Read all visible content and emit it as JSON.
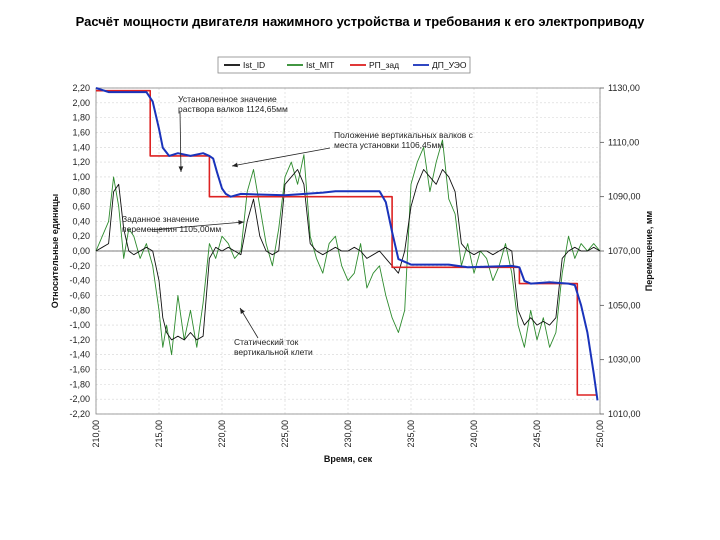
{
  "slide": {
    "title": "Расчёт мощности двигателя нажимного устройства и требования к его электроприводу"
  },
  "chart_data": {
    "type": "line",
    "xlabel": "Время, сек",
    "ylabel_left": "Относительные единицы",
    "ylabel_right": "Перемещение, мм",
    "x_ticks": [
      "210,00",
      "215,00",
      "220,00",
      "225,00",
      "230,00",
      "235,00",
      "240,00",
      "245,00",
      "250,00"
    ],
    "xlim": [
      210,
      250
    ],
    "y_left_ticks": [
      "2,20",
      "2,00",
      "1,80",
      "1,60",
      "1,40",
      "1,20",
      "1,00",
      "0,80",
      "0,60",
      "0,40",
      "0,20",
      "0,00",
      "-0,20",
      "-0,40",
      "-0,60",
      "-0,80",
      "-1,00",
      "-1,20",
      "-1,40",
      "-1,60",
      "-1,80",
      "-2,00",
      "-2,20"
    ],
    "ylim_left": [
      -2.2,
      2.2
    ],
    "y_right_ticks": [
      "1130,00",
      "1110,00",
      "1090,00",
      "1070,00",
      "1050,00",
      "1030,00",
      "1010,00"
    ],
    "ylim_right": [
      1010,
      1130
    ],
    "grid": true,
    "legend_position": "top",
    "legend": [
      {
        "name": "Ist_ID",
        "color": "#111111"
      },
      {
        "name": "Ist_MIT",
        "color": "#2e8b2e"
      },
      {
        "name": "PП_зад",
        "color": "#dd2222"
      },
      {
        "name": "ДП_УЭО",
        "color": "#1a33bb"
      }
    ],
    "series": [
      {
        "name": "PП_зад",
        "axis": "right",
        "x": [
          210.0,
          214.3,
          214.3,
          219.0,
          219.0,
          233.5,
          233.5,
          243.6,
          243.6,
          248.2,
          248.2,
          249.8
        ],
        "y": [
          1129.0,
          1129.0,
          1105.0,
          1105.0,
          1090.0,
          1090.0,
          1064.0,
          1064.0,
          1058.0,
          1058.0,
          1017.0,
          1017.0
        ]
      },
      {
        "name": "ДП_УЭО",
        "axis": "right",
        "x": [
          210.0,
          211.0,
          214.0,
          214.5,
          215.0,
          215.3,
          215.8,
          216.5,
          217.5,
          218.5,
          219.0,
          219.3,
          219.6,
          220.0,
          220.3,
          220.7,
          221.5,
          225.0,
          228.0,
          229.0,
          232.5,
          233.0,
          233.5,
          234.0,
          235.0,
          238.0,
          239.5,
          243.0,
          243.6,
          244.0,
          244.5,
          246.0,
          247.5,
          248.0,
          248.5,
          249.0,
          249.5,
          249.8
        ],
        "y": [
          1130.0,
          1128.5,
          1128.5,
          1125.0,
          1115.0,
          1108.0,
          1105.0,
          1106.0,
          1105.0,
          1106.0,
          1105.0,
          1104.0,
          1099.0,
          1093.0,
          1091.0,
          1090.0,
          1091.0,
          1090.5,
          1091.5,
          1092.0,
          1092.0,
          1088.0,
          1077.0,
          1067.0,
          1065.0,
          1065.0,
          1064.0,
          1064.5,
          1064.0,
          1059.0,
          1058.0,
          1058.5,
          1058.0,
          1057.5,
          1050.0,
          1040.0,
          1025.0,
          1015.0
        ]
      },
      {
        "name": "Ist_ID",
        "axis": "left",
        "x": [
          210.0,
          210.5,
          211.0,
          211.4,
          211.8,
          212.2,
          212.6,
          213.0,
          213.5,
          214.0,
          214.5,
          215.0,
          215.3,
          215.6,
          216.0,
          216.5,
          217.0,
          217.5,
          218.0,
          218.5,
          219.0,
          219.5,
          220.0,
          220.5,
          221.0,
          221.5,
          222.0,
          222.5,
          223.0,
          223.5,
          224.0,
          224.5,
          225.0,
          225.5,
          226.0,
          226.5,
          227.0,
          227.5,
          228.0,
          228.5,
          229.0,
          229.5,
          230.0,
          230.5,
          231.0,
          231.5,
          232.0,
          232.5,
          233.0,
          233.5,
          234.0,
          234.5,
          235.0,
          235.5,
          236.0,
          236.5,
          237.0,
          237.5,
          238.0,
          238.5,
          239.0,
          239.5,
          240.0,
          240.5,
          241.0,
          241.5,
          242.0,
          242.5,
          243.0,
          243.5,
          244.0,
          244.5,
          245.0,
          245.5,
          246.0,
          246.5,
          247.0,
          247.5,
          248.0,
          248.5,
          249.0,
          249.5,
          250.0
        ],
        "y": [
          0.0,
          0.05,
          0.1,
          0.8,
          0.9,
          0.3,
          0.0,
          -0.05,
          0.0,
          0.05,
          0.0,
          -0.4,
          -0.9,
          -1.1,
          -1.2,
          -1.15,
          -1.2,
          -1.1,
          -1.2,
          -1.15,
          -0.1,
          0.05,
          0.0,
          0.05,
          0.0,
          -0.05,
          0.4,
          0.7,
          0.2,
          0.0,
          -0.05,
          0.0,
          0.9,
          1.0,
          1.1,
          0.9,
          0.1,
          0.0,
          -0.05,
          0.0,
          0.05,
          0.0,
          0.0,
          0.05,
          0.0,
          -0.1,
          -0.05,
          0.0,
          -0.1,
          -0.2,
          -0.3,
          0.0,
          0.6,
          0.9,
          1.1,
          1.0,
          0.9,
          1.1,
          1.0,
          0.8,
          0.1,
          0.0,
          -0.05,
          0.0,
          0.0,
          -0.05,
          0.0,
          0.05,
          0.0,
          -0.8,
          -1.0,
          -0.9,
          -1.0,
          -0.95,
          -1.0,
          -0.9,
          -0.1,
          0.0,
          0.05,
          0.0,
          0.0,
          0.05,
          0.0
        ]
      },
      {
        "name": "Ist_MIT",
        "axis": "left",
        "x": [
          210.0,
          210.5,
          211.0,
          211.4,
          211.8,
          212.2,
          212.6,
          213.0,
          213.5,
          214.0,
          214.5,
          215.0,
          215.3,
          215.6,
          216.0,
          216.5,
          217.0,
          217.5,
          218.0,
          218.5,
          219.0,
          219.5,
          220.0,
          220.5,
          221.0,
          221.5,
          222.0,
          222.5,
          223.0,
          223.5,
          224.0,
          224.5,
          225.0,
          225.5,
          226.0,
          226.5,
          227.0,
          227.5,
          228.0,
          228.5,
          229.0,
          229.5,
          230.0,
          230.5,
          231.0,
          231.5,
          232.0,
          232.5,
          233.0,
          233.5,
          234.0,
          234.5,
          235.0,
          235.5,
          236.0,
          236.5,
          237.0,
          237.5,
          238.0,
          238.5,
          239.0,
          239.5,
          240.0,
          240.5,
          241.0,
          241.5,
          242.0,
          242.5,
          243.0,
          243.5,
          244.0,
          244.5,
          245.0,
          245.5,
          246.0,
          246.5,
          247.0,
          247.5,
          248.0,
          248.5,
          249.0,
          249.5,
          250.0
        ],
        "y": [
          0.0,
          0.2,
          0.4,
          1.0,
          0.6,
          -0.1,
          0.3,
          0.2,
          -0.1,
          0.1,
          -0.2,
          -0.8,
          -1.3,
          -1.0,
          -1.4,
          -0.6,
          -1.2,
          -0.8,
          -1.3,
          -0.7,
          0.1,
          -0.1,
          0.2,
          0.1,
          -0.1,
          0.0,
          0.8,
          1.1,
          0.6,
          0.1,
          -0.2,
          0.3,
          1.0,
          1.2,
          0.9,
          1.3,
          0.2,
          -0.1,
          -0.3,
          0.1,
          0.2,
          -0.2,
          -0.4,
          -0.3,
          0.1,
          -0.5,
          -0.3,
          -0.2,
          -0.6,
          -0.9,
          -1.1,
          -0.8,
          0.9,
          1.2,
          1.4,
          0.8,
          1.2,
          1.5,
          0.7,
          0.5,
          -0.2,
          0.1,
          -0.3,
          0.0,
          -0.1,
          -0.4,
          -0.2,
          0.1,
          -0.3,
          -1.0,
          -1.3,
          -0.8,
          -1.2,
          -0.9,
          -1.3,
          -1.1,
          -0.3,
          0.2,
          -0.1,
          0.1,
          0.0,
          0.1,
          0.0
        ]
      }
    ],
    "annotations": [
      {
        "lines": [
          "Установленное значение",
          "раствора валков 1124,65мм"
        ]
      },
      {
        "lines": [
          "Положение вертикальных валков с",
          "места установки 1106,45мм"
        ]
      },
      {
        "lines": [
          "Заданное значение",
          "перемещения 1105,00мм"
        ]
      },
      {
        "lines": [
          "Статический ток",
          "вертикальной клети"
        ]
      }
    ]
  }
}
